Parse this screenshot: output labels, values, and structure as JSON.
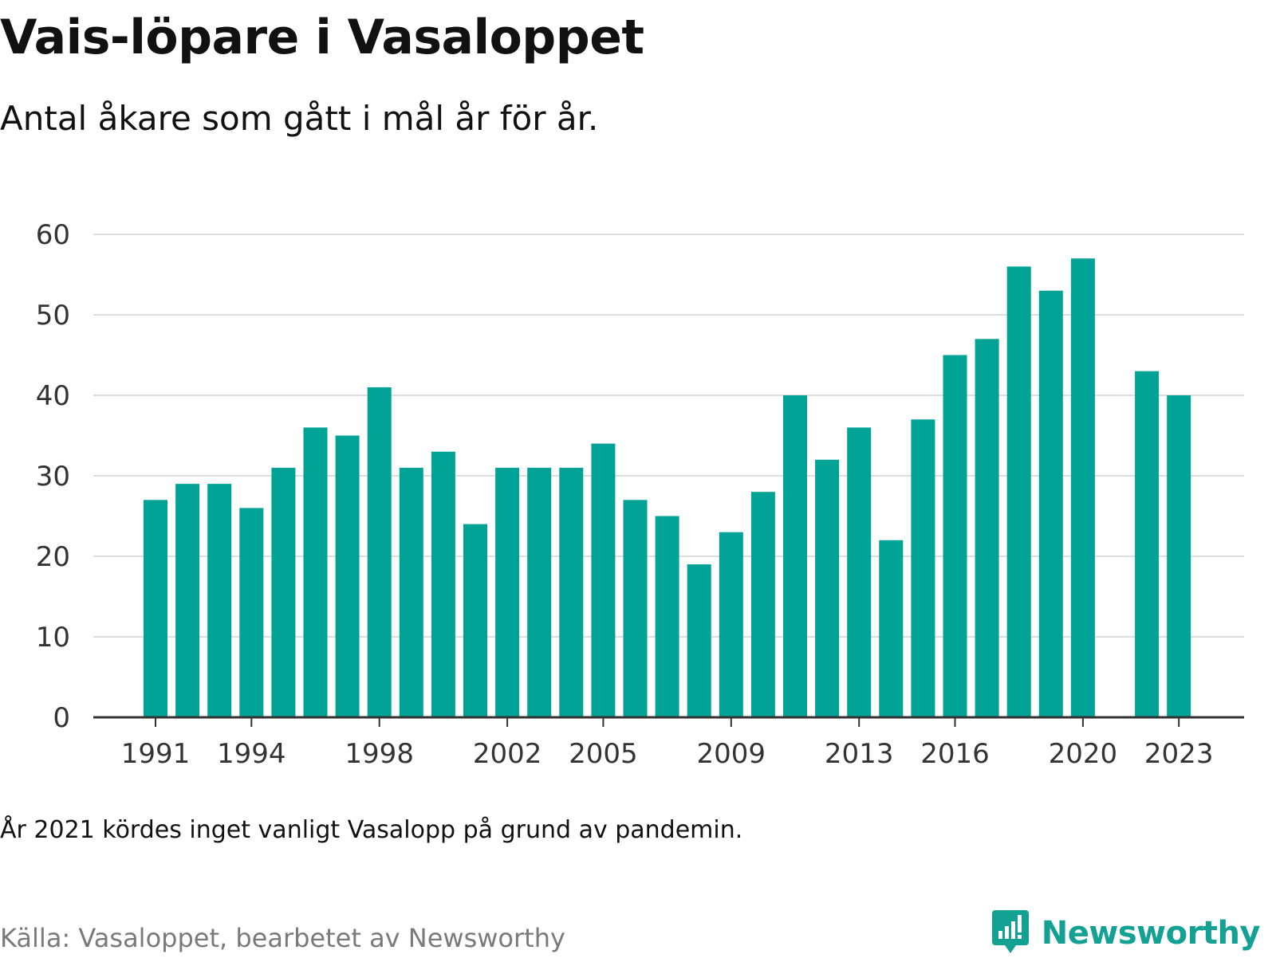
{
  "title": "Vais-löpare i Vasaloppet",
  "subtitle": "Antal åkare som gått i mål år för år.",
  "note": "År 2021 kördes inget vanligt Vasalopp på grund av pandemin.",
  "source": "Källa: Vasaloppet, bearbetet av Newsworthy",
  "brand": {
    "name": "Newsworthy",
    "icon": "newsworthy-logo-icon",
    "color": "#12a192"
  },
  "colors": {
    "bar": "#00a396",
    "grid": "#dddddd",
    "axis": "#333333"
  },
  "chart_data": {
    "type": "bar",
    "x": [
      1991,
      1992,
      1993,
      1994,
      1995,
      1996,
      1997,
      1998,
      1999,
      2000,
      2001,
      2002,
      2003,
      2004,
      2005,
      2006,
      2007,
      2008,
      2009,
      2010,
      2011,
      2012,
      2013,
      2014,
      2015,
      2016,
      2017,
      2018,
      2019,
      2020,
      2021,
      2022,
      2023
    ],
    "values": [
      27,
      29,
      29,
      26,
      31,
      36,
      35,
      41,
      31,
      33,
      24,
      31,
      31,
      31,
      34,
      27,
      25,
      19,
      23,
      28,
      40,
      32,
      36,
      22,
      37,
      45,
      47,
      56,
      53,
      57,
      null,
      43,
      40
    ],
    "xticks": [
      "1991",
      "1994",
      "1998",
      "2002",
      "2005",
      "2009",
      "2013",
      "2016",
      "2020",
      "2023"
    ],
    "yticks": [
      "0",
      "10",
      "20",
      "30",
      "40",
      "50",
      "60"
    ],
    "ylim": [
      0,
      60
    ],
    "grid": true,
    "xlabel": "",
    "ylabel": ""
  }
}
